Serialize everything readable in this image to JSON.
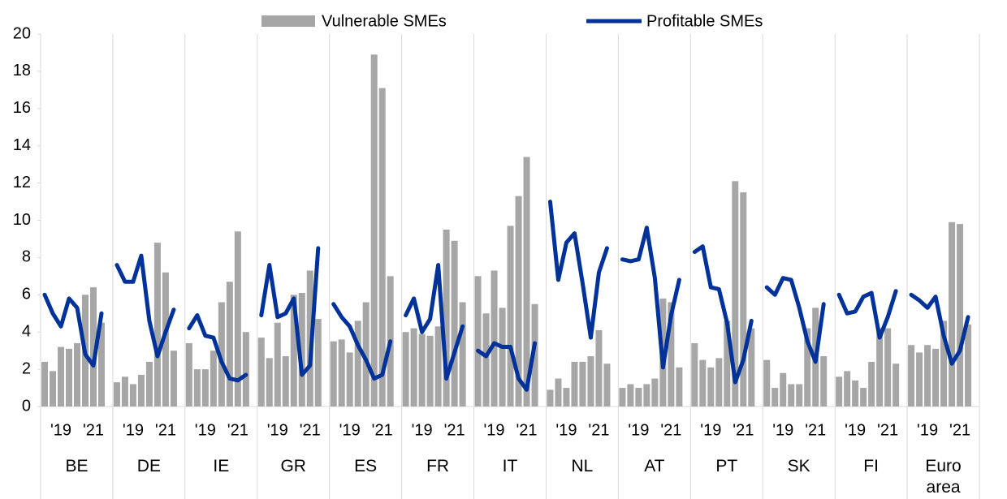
{
  "chart_data": {
    "type": "bar-line",
    "groups": [
      "BE",
      "DE",
      "IE",
      "GR",
      "ES",
      "FR",
      "IT",
      "NL",
      "AT",
      "PT",
      "SK",
      "FI",
      "Euro area"
    ],
    "categories": [
      null,
      null,
      "'19",
      null,
      null,
      null,
      "'21",
      null
    ],
    "series": [
      {
        "name": "Vulnerable SMEs",
        "type": "bar",
        "color": "#a6a6a6",
        "values": [
          [
            2.4,
            1.9,
            3.2,
            3.1,
            3.4,
            6.0,
            6.4,
            4.5
          ],
          [
            1.3,
            1.6,
            1.2,
            1.7,
            2.4,
            8.8,
            7.2,
            3.0
          ],
          [
            3.4,
            2.0,
            2.0,
            3.0,
            5.6,
            6.7,
            9.4,
            4.0
          ],
          [
            3.7,
            2.6,
            4.5,
            2.7,
            6.0,
            6.1,
            7.3,
            4.7
          ],
          [
            3.5,
            3.6,
            2.9,
            4.6,
            5.6,
            18.9,
            17.1,
            7.0
          ],
          [
            4.0,
            4.2,
            3.9,
            3.8,
            4.3,
            9.5,
            8.9,
            5.6
          ],
          [
            7.0,
            5.0,
            7.3,
            5.3,
            9.7,
            11.3,
            13.4,
            5.5
          ],
          [
            0.9,
            1.5,
            1.0,
            2.4,
            2.4,
            2.7,
            4.1,
            2.3
          ],
          [
            1.0,
            1.2,
            1.0,
            1.2,
            1.5,
            5.8,
            5.6,
            2.1
          ],
          [
            3.4,
            2.5,
            2.1,
            2.6,
            4.6,
            12.1,
            11.5,
            4.2
          ],
          [
            2.5,
            1.0,
            1.8,
            1.2,
            1.2,
            4.2,
            5.3,
            2.7
          ],
          [
            1.6,
            1.9,
            1.4,
            1.0,
            2.4,
            4.2,
            4.2,
            2.3
          ],
          [
            3.3,
            2.9,
            3.3,
            3.1,
            4.6,
            9.9,
            9.8,
            4.4
          ]
        ]
      },
      {
        "name": "Profitable SMEs",
        "type": "line",
        "color": "#003299",
        "values": [
          [
            6.0,
            5.0,
            4.3,
            5.8,
            5.3,
            2.8,
            2.2,
            5.0
          ],
          [
            7.6,
            6.7,
            6.7,
            8.1,
            4.6,
            2.7,
            4.0,
            5.2
          ],
          [
            4.2,
            4.9,
            3.8,
            3.7,
            2.4,
            1.5,
            1.4,
            1.7
          ],
          [
            4.9,
            7.6,
            4.8,
            5.0,
            5.8,
            1.7,
            2.2,
            8.5
          ],
          [
            5.5,
            4.8,
            4.3,
            3.3,
            2.5,
            1.5,
            1.7,
            3.5
          ],
          [
            4.9,
            5.8,
            4.0,
            4.7,
            7.6,
            1.5,
            2.9,
            4.3
          ],
          [
            3.0,
            2.7,
            3.4,
            3.2,
            3.2,
            1.5,
            0.9,
            3.4
          ],
          [
            11.0,
            6.8,
            8.8,
            9.3,
            6.6,
            3.7,
            7.2,
            8.5
          ],
          [
            7.9,
            7.8,
            7.9,
            9.6,
            6.9,
            2.1,
            4.9,
            6.8
          ],
          [
            8.3,
            8.6,
            6.4,
            6.3,
            4.5,
            1.3,
            2.5,
            4.6
          ],
          [
            6.4,
            6.0,
            6.9,
            6.8,
            5.3,
            3.5,
            2.4,
            5.5
          ],
          [
            6.0,
            5.0,
            5.1,
            5.9,
            6.1,
            3.7,
            4.8,
            6.2
          ],
          [
            6.0,
            5.7,
            5.3,
            5.9,
            3.8,
            2.3,
            3.0,
            4.8
          ]
        ]
      }
    ],
    "ylim": [
      0,
      20
    ],
    "yticks": [
      0,
      2,
      4,
      6,
      8,
      10,
      12,
      14,
      16,
      18,
      20
    ]
  }
}
